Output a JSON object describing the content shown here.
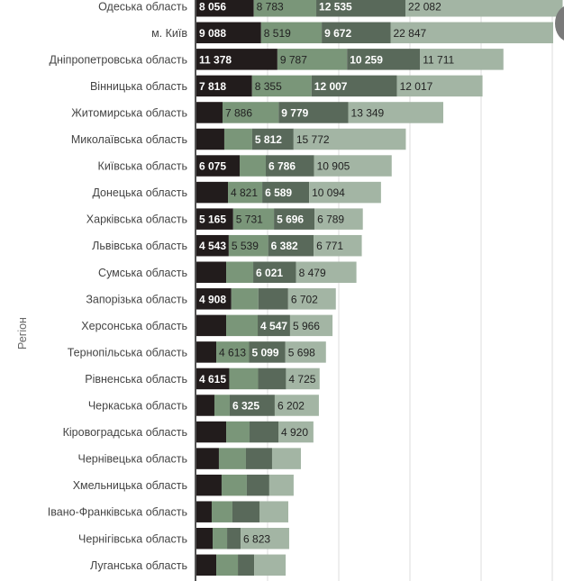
{
  "chart_data": {
    "type": "bar",
    "orientation": "horizontal",
    "stacked": true,
    "title": "",
    "ylabel": "Регіон",
    "xlabel": "",
    "xlim": [
      0,
      52000
    ],
    "grid": true,
    "grid_step": 10000,
    "categories": [
      "Одеська область",
      "м. Київ",
      "Дніпропетровська область",
      "Вінницька область",
      "Житомирська область",
      "Миколаївська область",
      "Київська область",
      "Донецька область",
      "Харківська область",
      "Львівська область",
      "Сумська область",
      "Запорізька область",
      "Херсонська область",
      "Тернопільська область",
      "Рівненська область",
      "Черкаська область",
      "Кіровоградська область",
      "Чернівецька область",
      "Хмельницька область",
      "Івано-Франківська область",
      "Чернігівська область",
      "Луганська область"
    ],
    "series": [
      {
        "name": "series-1",
        "color": "#221c1c",
        "label_class": "val-light",
        "values": [
          8056,
          9088,
          11378,
          7818,
          3670,
          3920,
          6075,
          4430,
          5165,
          4543,
          4180,
          4908,
          4180,
          2790,
          4615,
          2530,
          4180,
          3160,
          3540,
          2150,
          2280,
          2790
        ],
        "labels": [
          "8 056",
          "9 088",
          "11 378",
          "7 818",
          "",
          "",
          "6 075",
          "",
          "5 165",
          "4 543",
          "",
          "4 908",
          "",
          "",
          "4 615",
          "",
          "",
          "",
          "",
          "",
          "",
          ""
        ]
      },
      {
        "name": "series-2",
        "color": "#7a9679",
        "label_class": "val-dark",
        "values": [
          8783,
          8519,
          9787,
          8355,
          7886,
          3920,
          3670,
          4821,
          5731,
          5539,
          3800,
          3800,
          4430,
          4613,
          4050,
          2150,
          3290,
          3800,
          3540,
          2910,
          2030,
          3040
        ],
        "labels": [
          "8 783",
          "8 519",
          "9 787",
          "8 355",
          "7 886",
          "",
          "",
          "4 821",
          "5 731",
          "5 539",
          "",
          "",
          "",
          "4 613",
          "",
          "",
          "",
          "",
          "",
          "",
          "",
          ""
        ]
      },
      {
        "name": "series-3",
        "color": "#59695a",
        "label_class": "val-light",
        "values": [
          12535,
          9672,
          10259,
          12007,
          9779,
          5812,
          6786,
          6589,
          5696,
          6382,
          6021,
          4180,
          4547,
          5099,
          3920,
          6325,
          4050,
          3670,
          3160,
          3800,
          1900,
          2280
        ],
        "labels": [
          "12 535",
          "9 672",
          "10 259",
          "12 007",
          "9 779",
          "5 812",
          "6 786",
          "6 589",
          "5 696",
          "6 382",
          "6 021",
          "",
          "4 547",
          "5 099",
          "",
          "6 325",
          "",
          "",
          "",
          "",
          "",
          ""
        ]
      },
      {
        "name": "series-4",
        "color": "#a3b5a4",
        "label_class": "val-dark",
        "values": [
          22082,
          22847,
          11711,
          12017,
          13349,
          15772,
          10905,
          10094,
          6789,
          6771,
          8479,
          6702,
          5966,
          5698,
          4725,
          6202,
          4920,
          4050,
          3420,
          4050,
          6823,
          4430
        ],
        "labels": [
          "22 082",
          "22 847",
          "11 711",
          "12 017",
          "13 349",
          "15 772",
          "10 905",
          "10 094",
          "6 789",
          "6 771",
          "8 479",
          "6 702",
          "5 966",
          "5 698",
          "4 725",
          "6 202",
          "4 920",
          "",
          "",
          "",
          "6 823",
          ""
        ]
      }
    ]
  }
}
